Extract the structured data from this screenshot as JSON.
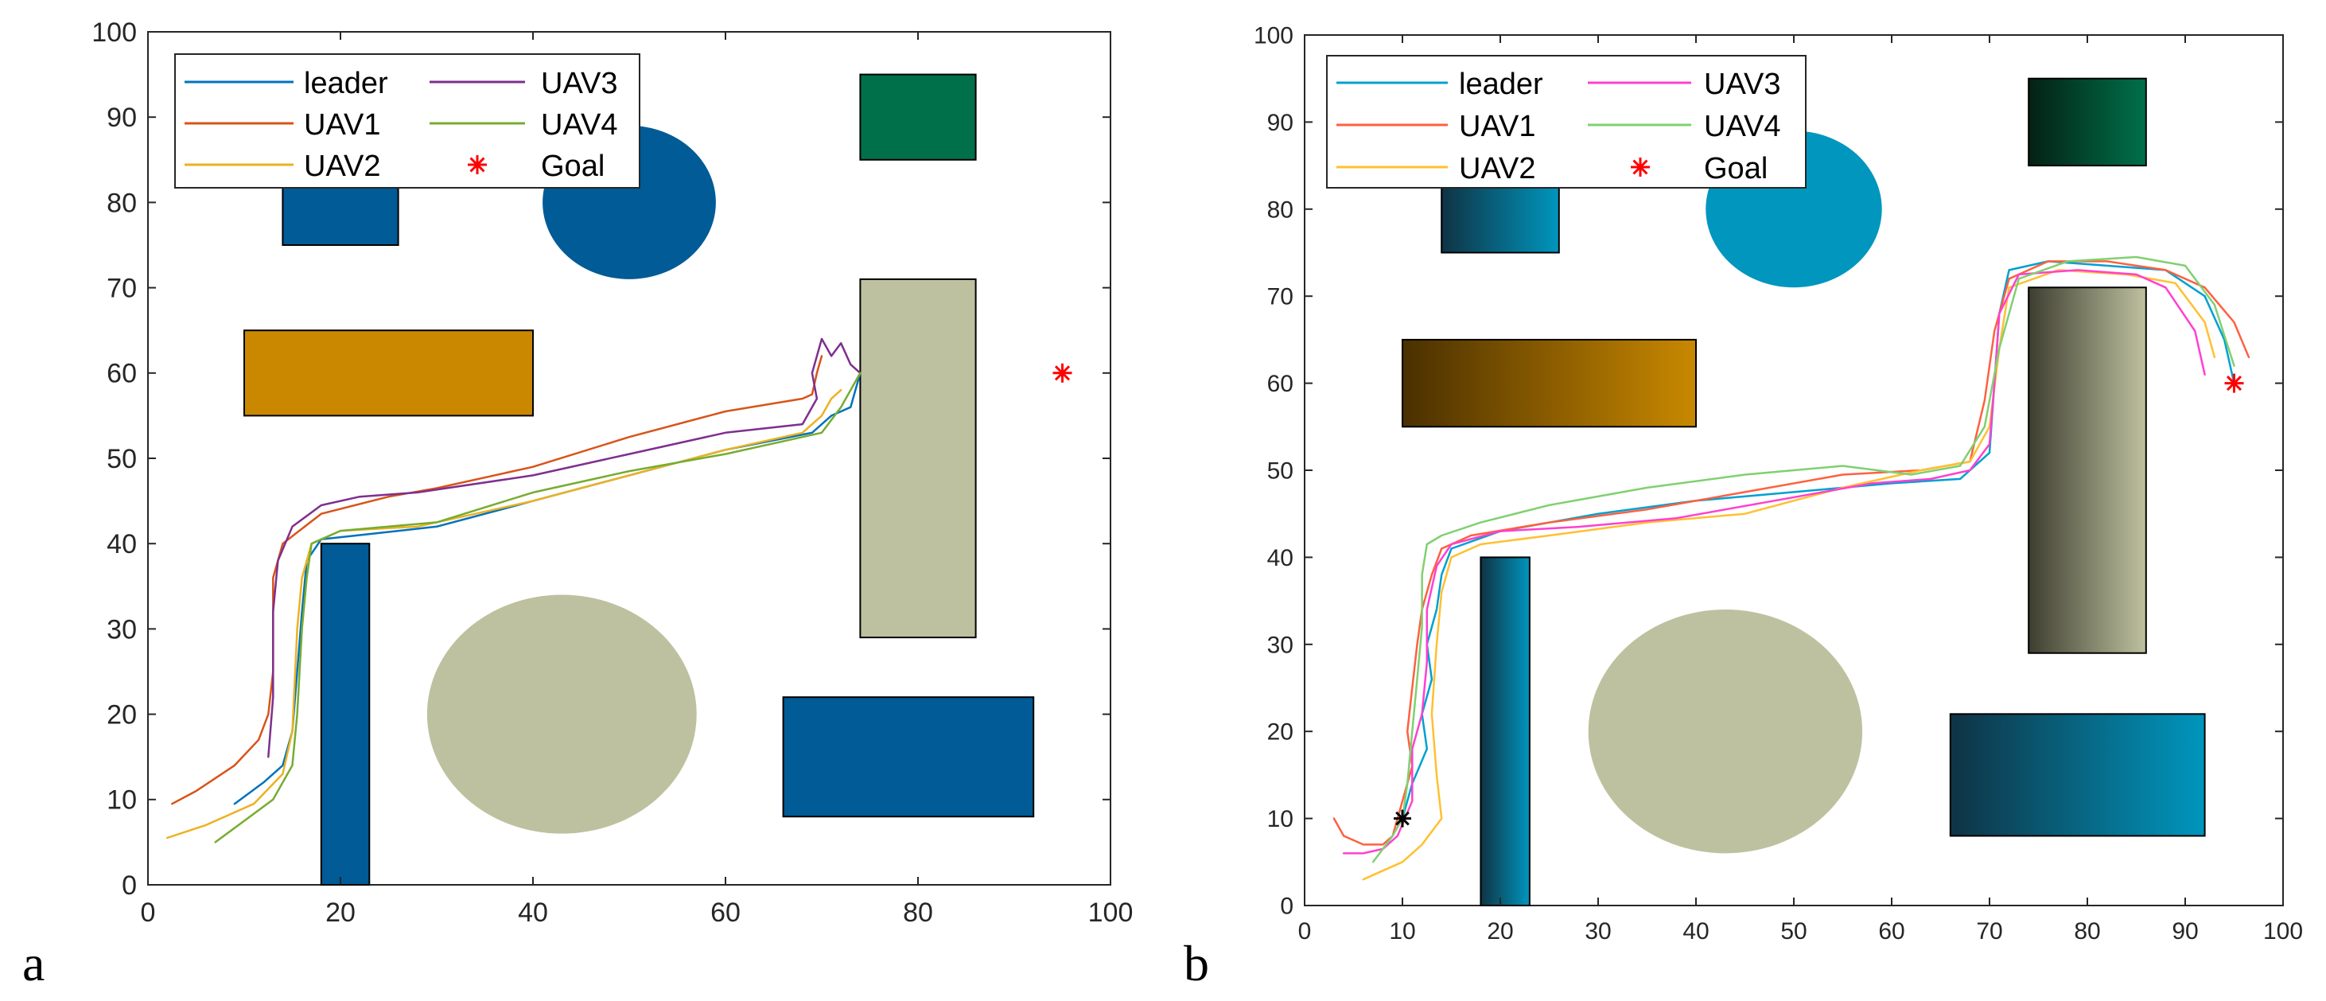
{
  "chart_data": [
    {
      "type": "line",
      "panel_label": "a",
      "title": "",
      "xlabel": "",
      "ylabel": "",
      "xlim": [
        0,
        100
      ],
      "ylim": [
        0,
        100
      ],
      "xticks": [
        0,
        20,
        40,
        60,
        80,
        100
      ],
      "yticks": [
        0,
        10,
        20,
        30,
        40,
        50,
        60,
        70,
        80,
        90,
        100
      ],
      "xtick_labels": [
        "0",
        "20",
        "40",
        "60",
        "80",
        "100"
      ],
      "ytick_labels": [
        "0",
        "10",
        "20",
        "30",
        "40",
        "50",
        "60",
        "70",
        "80",
        "90",
        "100"
      ],
      "legend_position": "top-left",
      "legend": [
        "leader",
        "UAV1",
        "UAV2",
        "UAV3",
        "UAV4",
        "Goal"
      ],
      "obstacles": [
        {
          "shape": "rect",
          "x": [
            14,
            26
          ],
          "y": [
            75,
            85
          ],
          "color": "#005b96"
        },
        {
          "shape": "ellipse",
          "cx": 50,
          "cy": 80,
          "rx": 9,
          "ry": 9,
          "color": "#005b96"
        },
        {
          "shape": "rect",
          "x": [
            74,
            86
          ],
          "y": [
            85,
            95
          ],
          "color": "#00704a"
        },
        {
          "shape": "rect",
          "x": [
            10,
            40
          ],
          "y": [
            55,
            65
          ],
          "color": "#c98800"
        },
        {
          "shape": "rect",
          "x": [
            74,
            86
          ],
          "y": [
            29,
            71
          ],
          "color": "#bec19f"
        },
        {
          "shape": "rect",
          "x": [
            18,
            23
          ],
          "y": [
            0,
            40
          ],
          "color": "#005b96"
        },
        {
          "shape": "ellipse",
          "cx": 43,
          "cy": 20,
          "rx": 14,
          "ry": 14,
          "color": "#bec19f"
        },
        {
          "shape": "rect",
          "x": [
            66,
            92
          ],
          "y": [
            8,
            22
          ],
          "color": "#005b96"
        }
      ],
      "goal": {
        "x": 95,
        "y": 60,
        "color": "#ff0000"
      },
      "series": [
        {
          "name": "leader",
          "color": "#0072bd",
          "x": [
            9,
            12,
            14,
            15,
            15.5,
            16,
            16.5,
            18,
            22,
            30,
            40,
            50,
            60,
            69,
            71,
            73,
            74
          ],
          "y": [
            9.5,
            12,
            14,
            18,
            25,
            32,
            38,
            40.5,
            41,
            42,
            45,
            48,
            51,
            53,
            55,
            56,
            60
          ]
        },
        {
          "name": "UAV1",
          "color": "#d95319",
          "x": [
            2.5,
            5,
            9,
            11.5,
            12.5,
            13,
            13,
            14,
            18,
            25,
            30,
            40,
            50,
            60,
            68,
            69,
            69.5,
            70
          ],
          "y": [
            9.5,
            11,
            14,
            17,
            20,
            25,
            36,
            40,
            43.5,
            45.5,
            46.5,
            49,
            52.5,
            55.5,
            57,
            57.5,
            60,
            62
          ]
        },
        {
          "name": "UAV2",
          "color": "#edb120",
          "x": [
            2,
            6,
            11,
            14,
            15,
            15.5,
            16,
            17,
            20,
            28,
            40,
            50,
            60,
            68,
            70,
            71,
            72
          ],
          "y": [
            5.5,
            7,
            9.5,
            13,
            18,
            30,
            36,
            40,
            41.5,
            42,
            45,
            48,
            51,
            53,
            55,
            57,
            58
          ]
        },
        {
          "name": "UAV3",
          "color": "#7e2f8e",
          "x": [
            12.5,
            13,
            13,
            13.5,
            15,
            18,
            22,
            28,
            40,
            50,
            60,
            68,
            69.5,
            69,
            70,
            71,
            72,
            73,
            74
          ],
          "y": [
            15,
            22,
            32,
            38,
            42,
            44.5,
            45.5,
            46,
            48,
            50.5,
            53,
            54,
            57,
            60,
            64,
            62,
            63.5,
            61,
            60
          ]
        },
        {
          "name": "UAV4",
          "color": "#77ac30",
          "x": [
            7,
            10,
            13,
            15,
            15.5,
            16,
            16.5,
            17,
            20,
            30,
            40,
            50,
            60,
            68,
            70,
            72,
            74
          ],
          "y": [
            5,
            7.5,
            10,
            14,
            20,
            30,
            36,
            40,
            41.5,
            42.5,
            46,
            48.5,
            50.5,
            52.5,
            53,
            56,
            60
          ]
        }
      ]
    },
    {
      "type": "line",
      "panel_label": "b",
      "title": "",
      "xlabel": "",
      "ylabel": "",
      "xlim": [
        0,
        100
      ],
      "ylim": [
        0,
        100
      ],
      "xticks": [
        0,
        10,
        20,
        30,
        40,
        50,
        60,
        70,
        80,
        90,
        100
      ],
      "yticks": [
        0,
        10,
        20,
        30,
        40,
        50,
        60,
        70,
        80,
        90,
        100
      ],
      "xtick_labels": [
        "0",
        "10",
        "20",
        "30",
        "40",
        "50",
        "60",
        "70",
        "80",
        "90",
        "100"
      ],
      "ytick_labels": [
        "0",
        "10",
        "20",
        "30",
        "40",
        "50",
        "60",
        "70",
        "80",
        "90",
        "100"
      ],
      "legend_position": "top-left",
      "legend": [
        "leader",
        "UAV1",
        "UAV2",
        "UAV3",
        "UAV4",
        "Goal"
      ],
      "obstacles": [
        {
          "shape": "rect",
          "x": [
            14,
            26
          ],
          "y": [
            75,
            85
          ],
          "gradient": [
            "#0f3344",
            "#0096be"
          ]
        },
        {
          "shape": "ellipse",
          "cx": 50,
          "cy": 80,
          "rx": 9,
          "ry": 9,
          "color": "#0096be"
        },
        {
          "shape": "rect",
          "x": [
            74,
            86
          ],
          "y": [
            85,
            95
          ],
          "gradient": [
            "#042114",
            "#00704a"
          ]
        },
        {
          "shape": "rect",
          "x": [
            10,
            40
          ],
          "y": [
            55,
            65
          ],
          "gradient": [
            "#4a3000",
            "#c98800"
          ]
        },
        {
          "shape": "rect",
          "x": [
            74,
            86
          ],
          "y": [
            29,
            71
          ],
          "gradient": [
            "#3e3e30",
            "#bec19f"
          ]
        },
        {
          "shape": "rect",
          "x": [
            18,
            23
          ],
          "y": [
            0,
            40
          ],
          "gradient": [
            "#0f3344",
            "#0096be"
          ]
        },
        {
          "shape": "ellipse",
          "cx": 43,
          "cy": 20,
          "rx": 14,
          "ry": 14,
          "color": "#bec19f"
        },
        {
          "shape": "rect",
          "x": [
            66,
            92
          ],
          "y": [
            8,
            22
          ],
          "gradient": [
            "#0f3344",
            "#0096be"
          ]
        }
      ],
      "start": {
        "x": 10,
        "y": 10,
        "color": "#000000"
      },
      "goal": {
        "x": 95,
        "y": 60,
        "color": "#ff0000"
      },
      "series": [
        {
          "name": "leader",
          "color": "#00a0d0",
          "x": [
            10,
            11,
            12.5,
            12,
            13,
            12.5,
            13.5,
            14,
            15,
            20,
            30,
            40,
            50,
            60,
            67,
            70,
            70.5,
            71,
            72,
            76,
            82,
            88,
            92,
            94,
            95
          ],
          "y": [
            10,
            14,
            18,
            22,
            26,
            30,
            34,
            38,
            41,
            43,
            45,
            46.5,
            47.5,
            48.5,
            49,
            52,
            60,
            68,
            73,
            74,
            73.5,
            73,
            70,
            65,
            60
          ]
        },
        {
          "name": "UAV1",
          "color": "#ff6040",
          "x": [
            3,
            4,
            6,
            8,
            9,
            10,
            11,
            10.5,
            11,
            11.5,
            12,
            13,
            14,
            17,
            25,
            35,
            45,
            55,
            63,
            68,
            69.5,
            70.5,
            72,
            76,
            82,
            88,
            92,
            95,
            96.5
          ],
          "y": [
            10,
            8,
            7,
            7,
            8,
            12,
            16,
            20,
            25,
            30,
            34,
            38,
            41,
            42.5,
            44,
            45.5,
            47.5,
            49.5,
            50,
            51,
            58,
            66,
            72,
            74,
            74,
            73,
            71,
            67,
            63
          ]
        },
        {
          "name": "UAV2",
          "color": "#ffc030",
          "x": [
            6,
            8,
            10,
            12,
            14,
            13.5,
            13,
            13.5,
            14,
            15,
            18,
            25,
            35,
            45,
            55,
            63,
            68,
            70,
            71,
            72,
            77,
            84,
            89,
            92,
            93
          ],
          "y": [
            3,
            4,
            5,
            7,
            10,
            15,
            22,
            30,
            36,
            40,
            41.5,
            42.5,
            44,
            45,
            48,
            50,
            51,
            55,
            64,
            71,
            73,
            72.5,
            71.5,
            67,
            63
          ]
        },
        {
          "name": "UAV3",
          "color": "#ff40d0",
          "x": [
            4,
            6,
            8,
            9.5,
            11,
            11,
            12,
            12.5,
            12.5,
            13.5,
            15,
            20,
            28,
            38,
            48,
            58,
            64,
            68,
            70,
            70.5,
            71,
            73,
            79,
            85,
            88,
            91,
            92
          ],
          "y": [
            6,
            6,
            6.5,
            8,
            12,
            18,
            22,
            28,
            34,
            39,
            41.5,
            43,
            43.5,
            44.5,
            46.5,
            48.5,
            49,
            50,
            53,
            60,
            68,
            72.5,
            73,
            72.5,
            71,
            66,
            61
          ]
        },
        {
          "name": "UAV4",
          "color": "#80d070",
          "x": [
            7,
            9,
            10,
            10.5,
            11,
            11.5,
            12,
            12,
            12.5,
            14,
            18,
            25,
            35,
            45,
            55,
            62,
            67,
            69.5,
            71,
            73,
            78,
            85,
            90,
            93,
            95
          ],
          "y": [
            5,
            8,
            10,
            14,
            20,
            26,
            32,
            38,
            41.5,
            42.5,
            44,
            46,
            48,
            49.5,
            50.5,
            49.5,
            50.5,
            55,
            64,
            72,
            74,
            74.5,
            73.5,
            69,
            62
          ]
        }
      ]
    }
  ]
}
